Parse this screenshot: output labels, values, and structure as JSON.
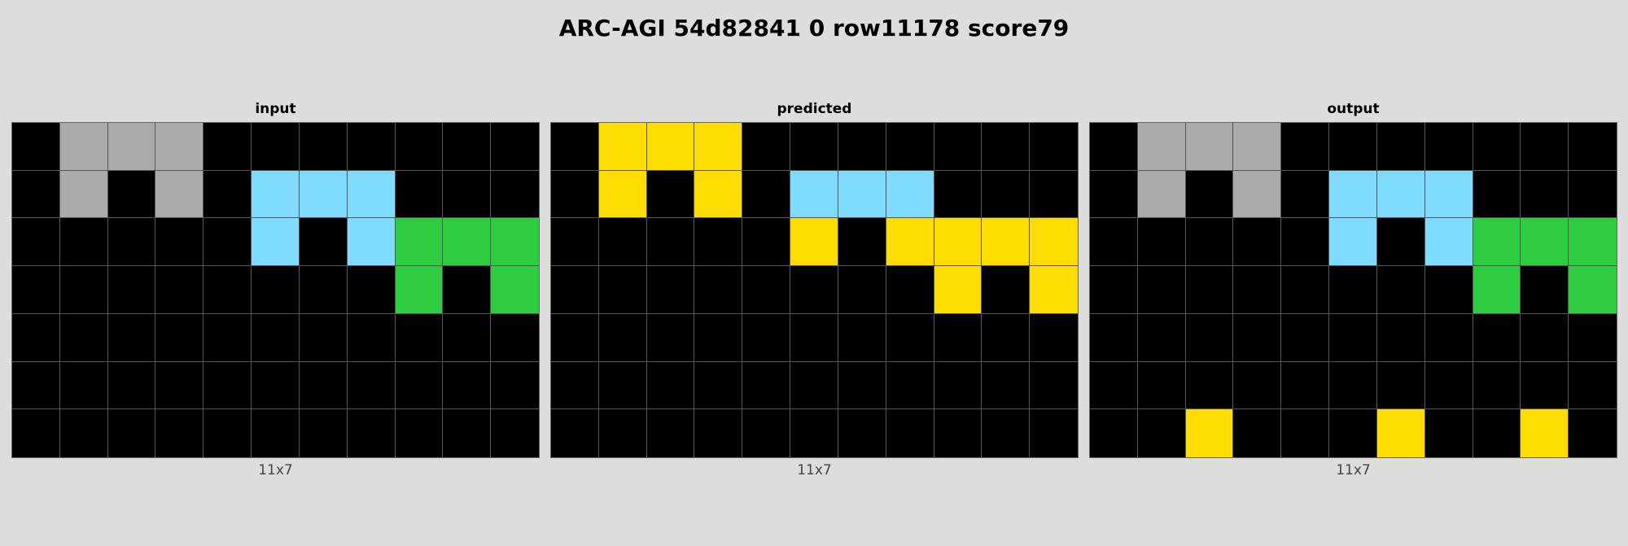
{
  "title": "ARC-AGI 54d82841 0 row11178 score79",
  "palette": {
    "0": "#000000",
    "3": "#2ecc40",
    "4": "#ffdc00",
    "5": "#aaaaaa",
    "8": "#7fdbff"
  },
  "panels": [
    {
      "label": "input",
      "dims": "11x7",
      "grid": [
        [
          0,
          5,
          5,
          5,
          0,
          0,
          0,
          0,
          0,
          0,
          0
        ],
        [
          0,
          5,
          0,
          5,
          0,
          8,
          8,
          8,
          0,
          0,
          0
        ],
        [
          0,
          0,
          0,
          0,
          0,
          8,
          0,
          8,
          3,
          3,
          3
        ],
        [
          0,
          0,
          0,
          0,
          0,
          0,
          0,
          0,
          3,
          0,
          3
        ],
        [
          0,
          0,
          0,
          0,
          0,
          0,
          0,
          0,
          0,
          0,
          0
        ],
        [
          0,
          0,
          0,
          0,
          0,
          0,
          0,
          0,
          0,
          0,
          0
        ],
        [
          0,
          0,
          0,
          0,
          0,
          0,
          0,
          0,
          0,
          0,
          0
        ]
      ]
    },
    {
      "label": "predicted",
      "dims": "11x7",
      "grid": [
        [
          0,
          4,
          4,
          4,
          0,
          0,
          0,
          0,
          0,
          0,
          0
        ],
        [
          0,
          4,
          0,
          4,
          0,
          8,
          8,
          8,
          0,
          0,
          0
        ],
        [
          0,
          0,
          0,
          0,
          0,
          4,
          0,
          4,
          4,
          4,
          4
        ],
        [
          0,
          0,
          0,
          0,
          0,
          0,
          0,
          0,
          4,
          0,
          4
        ],
        [
          0,
          0,
          0,
          0,
          0,
          0,
          0,
          0,
          0,
          0,
          0
        ],
        [
          0,
          0,
          0,
          0,
          0,
          0,
          0,
          0,
          0,
          0,
          0
        ],
        [
          0,
          0,
          0,
          0,
          0,
          0,
          0,
          0,
          0,
          0,
          0
        ]
      ]
    },
    {
      "label": "output",
      "dims": "11x7",
      "grid": [
        [
          0,
          5,
          5,
          5,
          0,
          0,
          0,
          0,
          0,
          0,
          0
        ],
        [
          0,
          5,
          0,
          5,
          0,
          8,
          8,
          8,
          0,
          0,
          0
        ],
        [
          0,
          0,
          0,
          0,
          0,
          8,
          0,
          8,
          3,
          3,
          3
        ],
        [
          0,
          0,
          0,
          0,
          0,
          0,
          0,
          0,
          3,
          0,
          3
        ],
        [
          0,
          0,
          0,
          0,
          0,
          0,
          0,
          0,
          0,
          0,
          0
        ],
        [
          0,
          0,
          0,
          0,
          0,
          0,
          0,
          0,
          0,
          0,
          0
        ],
        [
          0,
          0,
          4,
          0,
          0,
          0,
          4,
          0,
          0,
          4,
          0
        ]
      ]
    }
  ]
}
